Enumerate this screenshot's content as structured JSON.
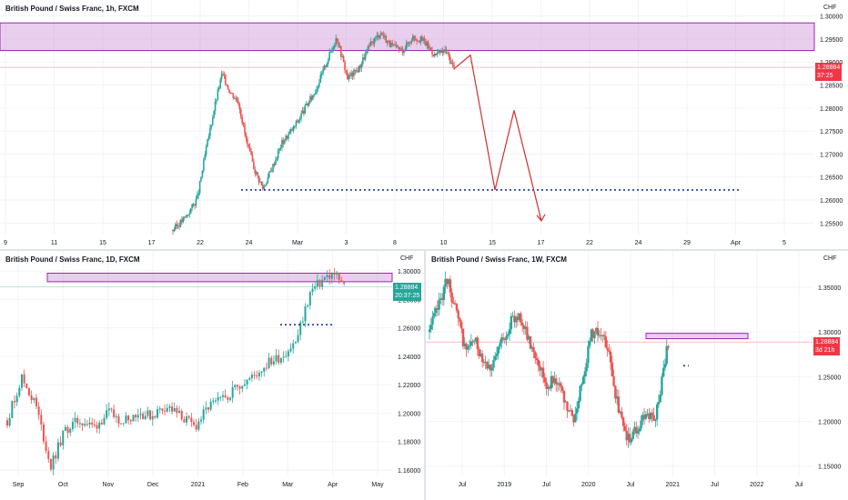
{
  "panes": [
    {
      "id": "h1",
      "title": "British Pound / Swiss Franc, 1h, FXCM",
      "currency": "CHF",
      "price_label": "1.28884",
      "countdown": "37:25",
      "label_color": "#f23645",
      "xticks": [
        "9",
        "11",
        "15",
        "17",
        "22",
        "24",
        "Mar",
        "3",
        "8",
        "10",
        "15",
        "17",
        "22",
        "24",
        "29",
        "Apr",
        "5"
      ],
      "chart_data": {
        "type": "line",
        "title": "British Pound / Swiss Franc, 1h, FXCM",
        "y_ticks": [
          1.255,
          1.26,
          1.265,
          1.27,
          1.275,
          1.28,
          1.285,
          1.29,
          1.295,
          1.3
        ],
        "ylim": [
          1.2525,
          1.3015
        ],
        "x": [
          0,
          5,
          9,
          12,
          15,
          18,
          21,
          24,
          27,
          30,
          33,
          36,
          40,
          44,
          48,
          52,
          56,
          60,
          64,
          68,
          72,
          76,
          80,
          84,
          88,
          92,
          96,
          100,
          103
        ],
        "close": [
          1.2535,
          1.2565,
          1.2605,
          1.2705,
          1.2795,
          1.2875,
          1.2835,
          1.2815,
          1.2725,
          1.2665,
          1.2625,
          1.2665,
          1.2725,
          1.2755,
          1.2795,
          1.2835,
          1.2895,
          1.2955,
          1.2865,
          1.2885,
          1.2935,
          1.2965,
          1.2935,
          1.2925,
          1.2955,
          1.2945,
          1.2915,
          1.2925,
          1.2885
        ],
        "resistance_zone": [
          1.2925,
          1.2985
        ],
        "support_level": 1.2622,
        "current_price": 1.28884,
        "projection": [
          [
            103,
            1.2885
          ],
          [
            109,
            1.2915
          ],
          [
            118,
            1.2622
          ],
          [
            125,
            1.2795
          ],
          [
            135,
            1.2555
          ]
        ],
        "grid": true
      }
    },
    {
      "id": "d1",
      "title": "British Pound / Swiss Franc, 1D, FXCM",
      "currency": "CHF",
      "price_label": "1.28884",
      "countdown": "20:37:25",
      "label_color": "#26a69a",
      "xticks": [
        "Sep",
        "Oct",
        "Nov",
        "Dec",
        "2021",
        "Feb",
        "Mar",
        "Apr",
        "May"
      ],
      "chart_data": {
        "type": "line",
        "title": "British Pound / Swiss Franc, 1D, FXCM",
        "y_ticks": [
          1.16,
          1.18,
          1.2,
          1.22,
          1.24,
          1.26,
          1.28,
          1.3
        ],
        "ylim": [
          1.1555,
          1.3065
        ],
        "x": [
          0,
          6,
          12,
          18,
          24,
          30,
          36,
          42,
          48,
          54,
          60,
          66,
          72,
          78,
          84,
          90,
          96,
          102,
          108,
          114,
          120,
          126,
          132,
          136,
          140
        ],
        "close": [
          1.195,
          1.225,
          1.205,
          1.162,
          1.188,
          1.195,
          1.19,
          1.2,
          1.195,
          1.2,
          1.198,
          1.205,
          1.198,
          1.19,
          1.205,
          1.21,
          1.22,
          1.225,
          1.235,
          1.24,
          1.25,
          1.285,
          1.295,
          1.298,
          1.2888
        ],
        "resistance_zone": [
          1.2925,
          1.2985
        ],
        "support_level": 1.2622,
        "current_price": 1.28884,
        "grid": true
      }
    },
    {
      "id": "w1",
      "title": "British Pound / Swiss Franc, 1W, FXCM",
      "currency": "CHF",
      "price_label": "1.28884",
      "countdown": "3d 21h",
      "label_color": "#f23645",
      "xticks": [
        "Jul",
        "2019",
        "Jul",
        "2020",
        "Jul",
        "2021",
        "Jul",
        "2022",
        "Jul"
      ],
      "chart_data": {
        "type": "line",
        "title": "British Pound / Swiss Franc, 1W, FXCM",
        "y_ticks": [
          1.15,
          1.2,
          1.25,
          1.3,
          1.35
        ],
        "ylim": [
          1.1385,
          1.3785
        ],
        "x": [
          0,
          8,
          16,
          24,
          32,
          40,
          48,
          56,
          64,
          72,
          80,
          88,
          96,
          104,
          112,
          120,
          128,
          136,
          144,
          152,
          160,
          168,
          176,
          184,
          192,
          200,
          208,
          212
        ],
        "close": [
          1.3,
          1.33,
          1.36,
          1.32,
          1.28,
          1.29,
          1.27,
          1.26,
          1.29,
          1.31,
          1.32,
          1.29,
          1.27,
          1.24,
          1.25,
          1.22,
          1.2,
          1.25,
          1.3,
          1.3,
          1.27,
          1.21,
          1.18,
          1.19,
          1.21,
          1.2,
          1.26,
          1.2888
        ],
        "resistance_zone": [
          1.2925,
          1.2985
        ],
        "support_level": 1.2622,
        "current_price": 1.28884,
        "grid": true
      }
    }
  ]
}
